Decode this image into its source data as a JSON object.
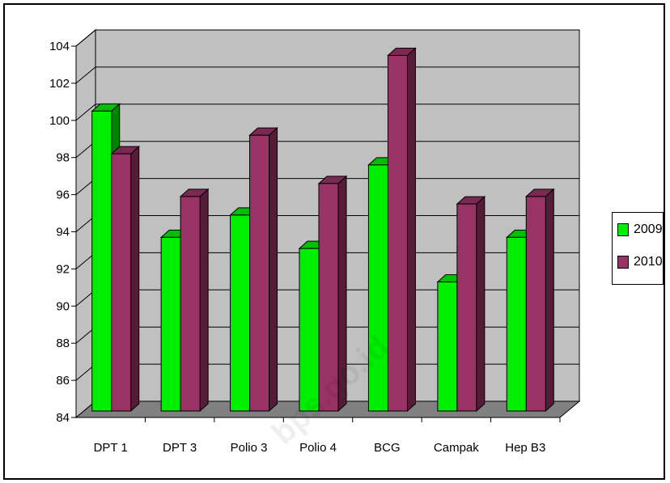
{
  "chart_data": {
    "type": "bar",
    "categories": [
      "DPT 1",
      "DPT 3",
      "Polio 3",
      "Polio 4",
      "BCG",
      "Campak",
      "Hep B3"
    ],
    "series": [
      {
        "name": "2009",
        "values": [
          100.5,
          93.7,
          94.9,
          93.1,
          97.6,
          91.3,
          93.7
        ]
      },
      {
        "name": "2010",
        "values": [
          98.2,
          95.9,
          99.2,
          96.6,
          103.5,
          95.5,
          95.9
        ]
      }
    ],
    "ylim": [
      84,
      104
    ],
    "yticks": [
      84,
      86,
      88,
      90,
      92,
      94,
      96,
      98,
      100,
      102,
      104
    ],
    "grid": true,
    "legend_position": "right",
    "colors": {
      "2009": "#00ee00",
      "2010": "#993366"
    },
    "title": "",
    "xlabel": "",
    "ylabel": ""
  },
  "watermark": "bps.go.id"
}
